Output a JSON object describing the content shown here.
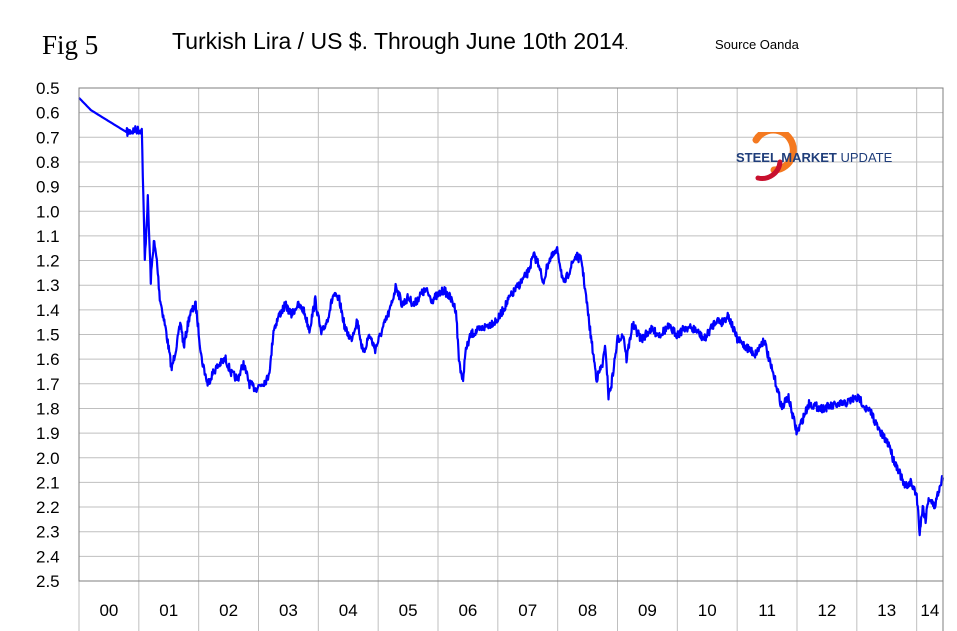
{
  "header": {
    "fig_label": "Fig 5",
    "title": "Turkish Lira / US $. Through June 10th 2014",
    "title_dot": ".",
    "source": "Source Oanda"
  },
  "logo": {
    "text_main": "STEEL MARKET",
    "text_accent": " UPDATE",
    "colors": {
      "orange": "#f47920",
      "red": "#c8102e",
      "navy": "#1f3d7a"
    }
  },
  "chart_data": {
    "type": "line",
    "title": "Turkish Lira / US $. Through June 10th 2014",
    "xlabel": "",
    "ylabel": "",
    "y_inverted": true,
    "ylim": [
      0.5,
      2.5
    ],
    "xlim": [
      2000,
      2014.44
    ],
    "y_ticks": [
      "0.5",
      "0.6",
      "0.7",
      "0.8",
      "0.9",
      "1.0",
      "1.1",
      "1.2",
      "1.3",
      "1.4",
      "1.5",
      "1.6",
      "1.7",
      "1.8",
      "1.9",
      "2.0",
      "2.1",
      "2.2",
      "2.3",
      "2.4",
      "2.5"
    ],
    "x_categories": [
      "00",
      "01",
      "02",
      "03",
      "04",
      "05",
      "06",
      "07",
      "08",
      "09",
      "10",
      "11",
      "12",
      "13",
      "14"
    ],
    "grid": true,
    "line_color": "#0000ff",
    "series": [
      {
        "name": "TRY per USD",
        "x": [
          2000.0,
          2000.2,
          2000.4,
          2000.6,
          2000.8,
          2000.95,
          2001.05,
          2001.1,
          2001.15,
          2001.2,
          2001.25,
          2001.3,
          2001.35,
          2001.45,
          2001.55,
          2001.65,
          2001.7,
          2001.75,
          2001.85,
          2001.95,
          2002.05,
          2002.15,
          2002.25,
          2002.35,
          2002.45,
          2002.55,
          2002.65,
          2002.75,
          2002.85,
          2002.95,
          2003.05,
          2003.15,
          2003.2,
          2003.25,
          2003.35,
          2003.45,
          2003.55,
          2003.65,
          2003.75,
          2003.85,
          2003.95,
          2004.05,
          2004.15,
          2004.25,
          2004.35,
          2004.45,
          2004.55,
          2004.65,
          2004.75,
          2004.85,
          2004.95,
          2005.1,
          2005.2,
          2005.3,
          2005.4,
          2005.5,
          2005.6,
          2005.7,
          2005.8,
          2005.9,
          2006.0,
          2006.1,
          2006.2,
          2006.3,
          2006.35,
          2006.42,
          2006.45,
          2006.55,
          2006.7,
          2006.85,
          2007.0,
          2007.2,
          2007.35,
          2007.5,
          2007.6,
          2007.7,
          2007.75,
          2007.85,
          2008.0,
          2008.1,
          2008.2,
          2008.3,
          2008.4,
          2008.55,
          2008.65,
          2008.75,
          2008.8,
          2008.85,
          2008.9,
          2009.0,
          2009.1,
          2009.15,
          2009.25,
          2009.4,
          2009.55,
          2009.7,
          2009.85,
          2010.0,
          2010.15,
          2010.3,
          2010.45,
          2010.55,
          2010.65,
          2010.75,
          2010.85,
          2011.0,
          2011.15,
          2011.3,
          2011.45,
          2011.55,
          2011.65,
          2011.75,
          2011.85,
          2011.95,
          2012.0,
          2012.2,
          2012.4,
          2012.6,
          2012.8,
          2012.95,
          2013.05,
          2013.15,
          2013.25,
          2013.35,
          2013.45,
          2013.55,
          2013.6,
          2013.7,
          2013.8,
          2013.9,
          2014.0,
          2014.05,
          2014.1,
          2014.15,
          2014.2,
          2014.3,
          2014.4,
          2014.44
        ],
        "y": [
          0.54,
          0.59,
          0.62,
          0.65,
          0.68,
          0.67,
          0.67,
          1.2,
          0.95,
          1.28,
          1.12,
          1.2,
          1.35,
          1.48,
          1.64,
          1.52,
          1.45,
          1.55,
          1.42,
          1.38,
          1.6,
          1.7,
          1.65,
          1.62,
          1.6,
          1.66,
          1.68,
          1.62,
          1.7,
          1.72,
          1.7,
          1.68,
          1.62,
          1.48,
          1.42,
          1.38,
          1.42,
          1.38,
          1.4,
          1.48,
          1.36,
          1.5,
          1.44,
          1.34,
          1.36,
          1.48,
          1.52,
          1.44,
          1.58,
          1.5,
          1.56,
          1.46,
          1.4,
          1.3,
          1.38,
          1.35,
          1.38,
          1.34,
          1.32,
          1.36,
          1.34,
          1.32,
          1.35,
          1.4,
          1.6,
          1.7,
          1.58,
          1.5,
          1.48,
          1.46,
          1.44,
          1.35,
          1.3,
          1.25,
          1.18,
          1.22,
          1.3,
          1.2,
          1.16,
          1.3,
          1.24,
          1.18,
          1.2,
          1.5,
          1.68,
          1.62,
          1.55,
          1.75,
          1.7,
          1.52,
          1.5,
          1.6,
          1.46,
          1.52,
          1.48,
          1.5,
          1.47,
          1.5,
          1.47,
          1.48,
          1.52,
          1.48,
          1.44,
          1.45,
          1.42,
          1.52,
          1.55,
          1.58,
          1.52,
          1.62,
          1.7,
          1.8,
          1.75,
          1.85,
          1.9,
          1.78,
          1.8,
          1.79,
          1.78,
          1.76,
          1.76,
          1.8,
          1.82,
          1.88,
          1.92,
          1.95,
          2.0,
          2.05,
          2.12,
          2.1,
          2.15,
          2.3,
          2.2,
          2.25,
          2.16,
          2.2,
          2.1,
          2.08
        ]
      }
    ]
  }
}
